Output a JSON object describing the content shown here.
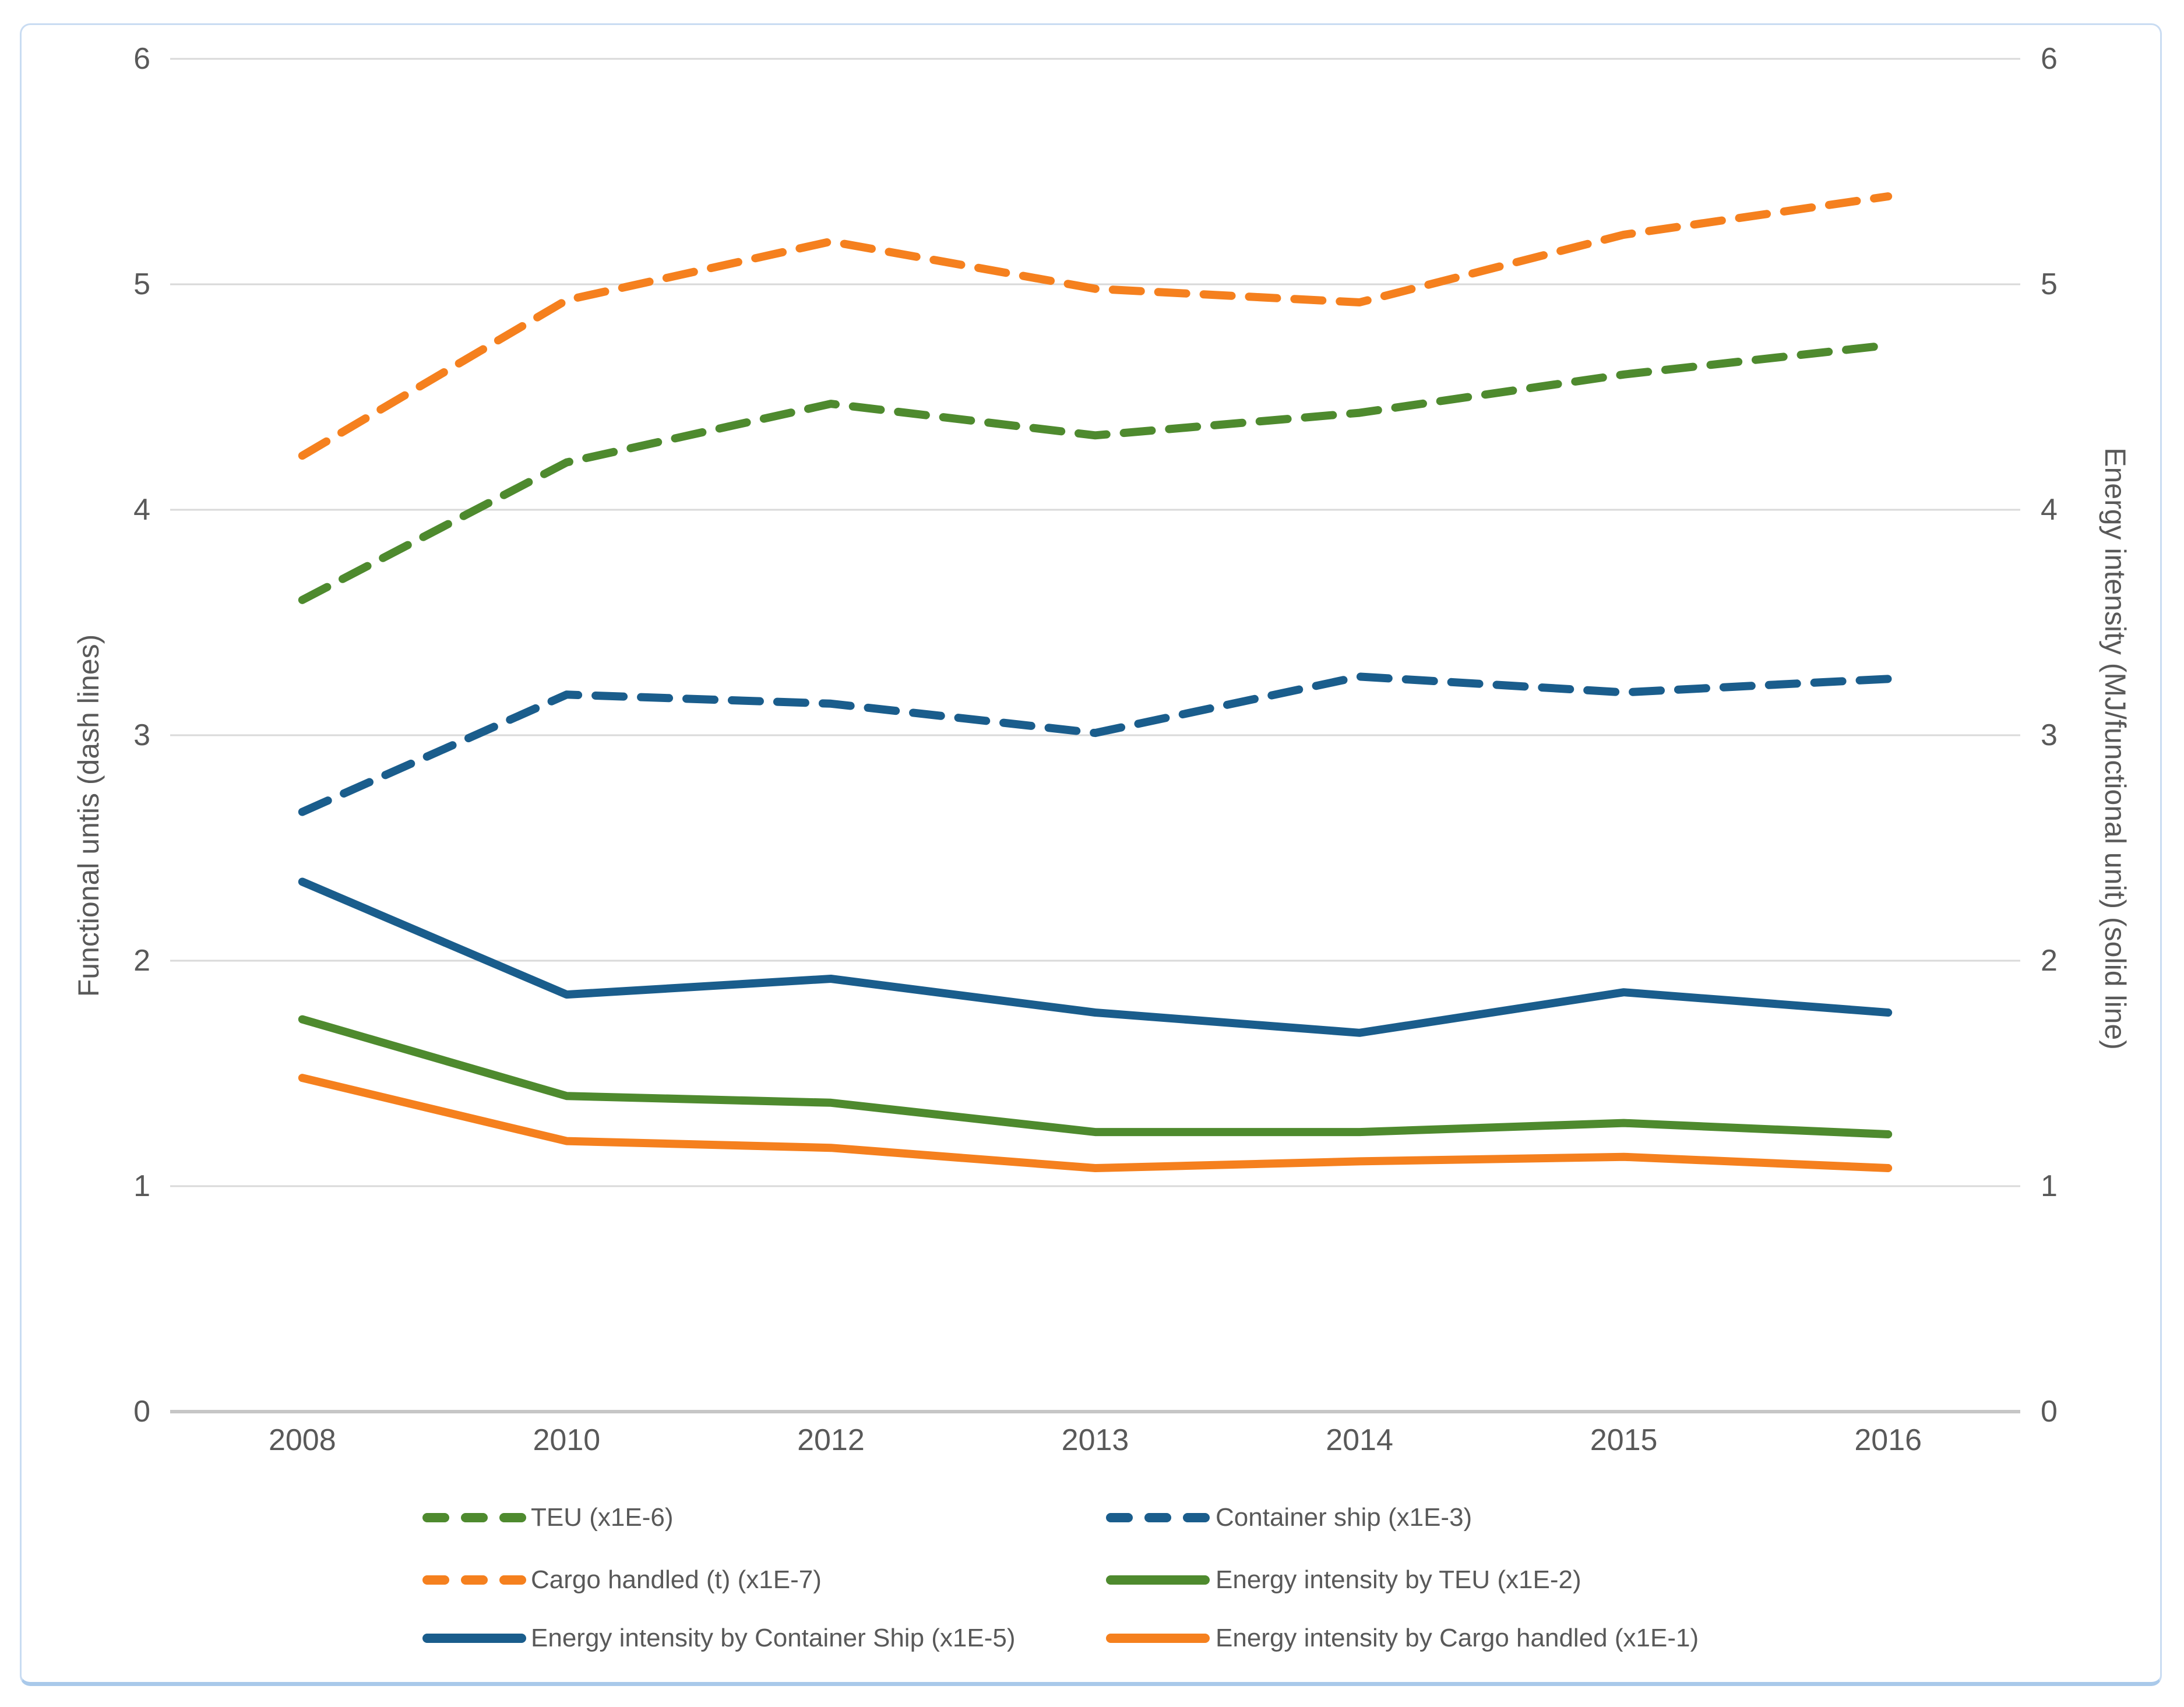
{
  "figure": {
    "left_axis_title": "Functional untis (dash lines)",
    "right_axis_title": "Energy intensity (MJ/functional unit) (solid line)"
  },
  "colors": {
    "green": "#4E8A2E",
    "blue": "#1A5D8C",
    "orange": "#F5801E",
    "gridline": "#D9D9D9",
    "axis_line": "#C6C6C6",
    "tick_text": "#595959",
    "figure_border": "#C9DCF2",
    "figure_border_bottom": "#A9C9EA"
  },
  "chart_data": {
    "type": "line",
    "x": [
      "2008",
      "2010",
      "2012",
      "2013",
      "2014",
      "2015",
      "2016"
    ],
    "yticks": [
      0,
      1,
      2,
      3,
      4,
      5,
      6
    ],
    "left_ylim": [
      0,
      6
    ],
    "right_ylim": [
      0,
      6
    ],
    "grid": true,
    "legend_position": "bottom",
    "left_axis_label": "Functional untis (dash lines)",
    "right_axis_label": "Energy intensity (MJ/functional unit) (solid line)",
    "series": [
      {
        "name": "TEU (x1E-6)",
        "axis": "left",
        "style": "dashed",
        "color": "#4E8A2E",
        "values": [
          3.6,
          4.21,
          4.47,
          4.33,
          4.43,
          4.6,
          4.73
        ]
      },
      {
        "name": "Container ship (x1E-3)",
        "axis": "left",
        "style": "dashed",
        "color": "#1A5D8C",
        "values": [
          2.66,
          3.18,
          3.14,
          3.01,
          3.26,
          3.19,
          3.25
        ]
      },
      {
        "name": "Cargo handled (t) (x1E-7)",
        "axis": "left",
        "style": "dashed",
        "color": "#F5801E",
        "values": [
          4.24,
          4.93,
          5.19,
          4.98,
          4.92,
          5.22,
          5.39
        ]
      },
      {
        "name": "Energy intensity by TEU (x1E-2)",
        "axis": "right",
        "style": "solid",
        "color": "#4E8A2E",
        "values": [
          1.74,
          1.4,
          1.37,
          1.24,
          1.24,
          1.28,
          1.23
        ]
      },
      {
        "name": "Energy intensity by Container Ship (x1E-5)",
        "axis": "right",
        "style": "solid",
        "color": "#1A5D8C",
        "values": [
          2.35,
          1.85,
          1.92,
          1.77,
          1.68,
          1.86,
          1.77
        ]
      },
      {
        "name": "Energy intensity by Cargo handled (x1E-1)",
        "axis": "right",
        "style": "solid",
        "color": "#F5801E",
        "values": [
          1.48,
          1.2,
          1.17,
          1.08,
          1.11,
          1.13,
          1.08
        ]
      }
    ]
  }
}
